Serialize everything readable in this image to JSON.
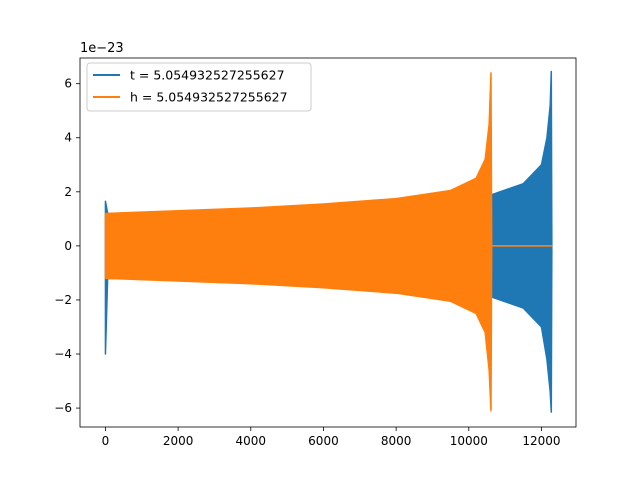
{
  "chart_data": {
    "type": "line",
    "title": "",
    "xlabel": "",
    "ylabel": "",
    "offset_label": "1e−23",
    "xlim": [
      -700,
      12950
    ],
    "ylim": [
      -6.7,
      6.95
    ],
    "xticks": [
      0,
      2000,
      4000,
      6000,
      8000,
      10000,
      12000
    ],
    "xtick_labels": [
      "0",
      "2000",
      "4000",
      "6000",
      "8000",
      "10000",
      "12000"
    ],
    "yticks": [
      -6,
      -4,
      -2,
      0,
      2,
      4,
      6
    ],
    "ytick_labels": [
      "−6",
      "−4",
      "−2",
      "0",
      "2",
      "4",
      "6"
    ],
    "grid": false,
    "legend": {
      "placement": "top-left"
    },
    "series": [
      {
        "name": "t = 5.054932527255627",
        "color": "#1f77b4",
        "envelope_points": [
          [
            0,
            1.65,
            -4.0
          ],
          [
            60,
            1.2,
            -1.2
          ],
          [
            2000,
            1.25,
            -1.25
          ],
          [
            4000,
            1.35,
            -1.35
          ],
          [
            6000,
            1.5,
            -1.5
          ],
          [
            8000,
            1.7,
            -1.7
          ],
          [
            10000,
            1.85,
            -1.85
          ],
          [
            10650,
            1.9,
            -1.9
          ],
          [
            11500,
            2.3,
            -2.3
          ],
          [
            12000,
            3.0,
            -3.0
          ],
          [
            12150,
            4.0,
            -4.2
          ],
          [
            12240,
            5.2,
            -5.4
          ],
          [
            12270,
            6.45,
            -6.15
          ],
          [
            12285,
            0,
            0
          ]
        ]
      },
      {
        "name": "h = 5.054932527255627",
        "color": "#ff7f0e",
        "envelope_points": [
          [
            0,
            1.2,
            -1.2
          ],
          [
            2000,
            1.3,
            -1.3
          ],
          [
            4000,
            1.4,
            -1.4
          ],
          [
            6000,
            1.55,
            -1.55
          ],
          [
            8000,
            1.75,
            -1.75
          ],
          [
            9500,
            2.05,
            -2.05
          ],
          [
            10200,
            2.5,
            -2.5
          ],
          [
            10450,
            3.2,
            -3.2
          ],
          [
            10560,
            4.5,
            -4.6
          ],
          [
            10610,
            6.4,
            -6.1
          ],
          [
            10630,
            0,
            0
          ],
          [
            12285,
            0,
            0
          ]
        ]
      }
    ]
  }
}
